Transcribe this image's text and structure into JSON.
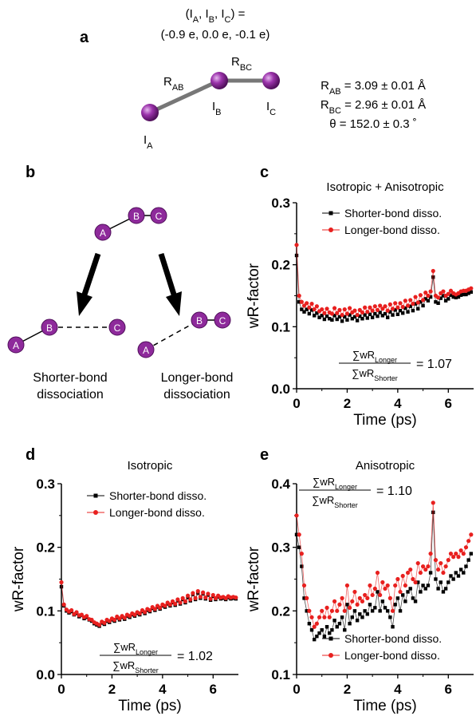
{
  "panel_a": {
    "label": "a",
    "charges_line1": "(I<sub>A</sub>, I<sub>B</sub>, I<sub>C</sub>) =",
    "charges_line2": "(-0.9 e, 0.0 e, -0.1 e)",
    "r_ab_label": "R<sub>AB</sub>",
    "r_bc_label": "R<sub>BC</sub>",
    "atom_a": "I<sub>A</sub>",
    "atom_b": "I<sub>B</sub>",
    "atom_c": "I<sub>C</sub>",
    "r_ab_value": "R<sub>AB</sub> = 3.09 ± 0.01 Å",
    "r_bc_value": "R<sub>BC</sub> = 2.96 ± 0.01 Å",
    "theta_value": "θ = 152.0 ± 0.3 ˚",
    "atom_color": "#8e2a9b"
  },
  "panel_b": {
    "label": "b",
    "atoms": [
      "A",
      "B",
      "C"
    ],
    "shorter_line1": "Shorter-bond",
    "shorter_line2": "dissociation",
    "longer_line1": "Longer-bond",
    "longer_line2": "dissociation"
  },
  "series_names": {
    "shorter": "Shorter-bond disso.",
    "longer": "Longer-bond disso."
  },
  "colors": {
    "shorter": "#000000",
    "longer": "#e8201f",
    "atom": "#8e2a9b"
  },
  "chart_data": [
    {
      "panel": "c",
      "type": "line",
      "title": "Isotropic + Anisotropic",
      "xlabel": "Time (ps)",
      "ylabel": "wR-factor",
      "xlim": [
        0,
        7
      ],
      "ylim": [
        0.0,
        0.3
      ],
      "xticks": [
        0,
        2,
        4,
        6
      ],
      "yticks": [
        0.0,
        0.1,
        0.2,
        0.3
      ],
      "ratio_num": "∑wR<sub>Longer</sub>",
      "ratio_den": "∑wR<sub>Shorter</sub>",
      "ratio_value": "= 1.07",
      "legend": "top-right",
      "x": [
        0.0,
        0.1,
        0.2,
        0.3,
        0.4,
        0.5,
        0.6,
        0.7,
        0.8,
        0.9,
        1.0,
        1.1,
        1.2,
        1.3,
        1.4,
        1.5,
        1.6,
        1.7,
        1.8,
        1.9,
        2.0,
        2.1,
        2.2,
        2.3,
        2.4,
        2.5,
        2.6,
        2.7,
        2.8,
        2.9,
        3.0,
        3.1,
        3.2,
        3.3,
        3.4,
        3.5,
        3.6,
        3.7,
        3.8,
        3.9,
        4.0,
        4.1,
        4.2,
        4.3,
        4.4,
        4.5,
        4.6,
        4.7,
        4.8,
        4.9,
        5.0,
        5.1,
        5.2,
        5.3,
        5.4,
        5.5,
        5.6,
        5.7,
        5.8,
        5.9,
        6.0,
        6.1,
        6.2,
        6.3,
        6.4,
        6.5,
        6.6,
        6.7,
        6.8,
        6.9
      ],
      "series": [
        {
          "key": "shorter",
          "values": [
            0.215,
            0.14,
            0.128,
            0.124,
            0.128,
            0.121,
            0.127,
            0.118,
            0.122,
            0.115,
            0.118,
            0.112,
            0.117,
            0.113,
            0.111,
            0.118,
            0.112,
            0.116,
            0.109,
            0.116,
            0.111,
            0.119,
            0.113,
            0.116,
            0.11,
            0.117,
            0.113,
            0.119,
            0.114,
            0.12,
            0.115,
            0.121,
            0.117,
            0.123,
            0.118,
            0.121,
            0.115,
            0.124,
            0.119,
            0.127,
            0.12,
            0.126,
            0.122,
            0.13,
            0.124,
            0.133,
            0.126,
            0.137,
            0.129,
            0.14,
            0.134,
            0.145,
            0.142,
            0.148,
            0.18,
            0.14,
            0.138,
            0.146,
            0.15,
            0.142,
            0.145,
            0.151,
            0.148,
            0.147,
            0.148,
            0.151,
            0.152,
            0.152,
            0.154,
            0.156
          ]
        },
        {
          "key": "longer",
          "values": [
            0.232,
            0.15,
            0.14,
            0.134,
            0.138,
            0.131,
            0.137,
            0.128,
            0.133,
            0.125,
            0.128,
            0.122,
            0.129,
            0.123,
            0.121,
            0.13,
            0.122,
            0.127,
            0.119,
            0.128,
            0.121,
            0.13,
            0.123,
            0.126,
            0.119,
            0.127,
            0.123,
            0.131,
            0.124,
            0.131,
            0.126,
            0.133,
            0.127,
            0.134,
            0.129,
            0.133,
            0.126,
            0.136,
            0.129,
            0.138,
            0.131,
            0.138,
            0.132,
            0.142,
            0.134,
            0.143,
            0.137,
            0.148,
            0.139,
            0.151,
            0.143,
            0.155,
            0.15,
            0.157,
            0.19,
            0.15,
            0.147,
            0.154,
            0.157,
            0.15,
            0.153,
            0.158,
            0.154,
            0.152,
            0.154,
            0.157,
            0.158,
            0.158,
            0.16,
            0.162
          ]
        }
      ]
    },
    {
      "panel": "d",
      "type": "line",
      "title": "Isotropic",
      "xlabel": "Time (ps)",
      "ylabel": "wR-factor",
      "xlim": [
        0,
        7
      ],
      "ylim": [
        0.0,
        0.3
      ],
      "xticks": [
        0,
        2,
        4,
        6
      ],
      "yticks": [
        0.0,
        0.1,
        0.2,
        0.3
      ],
      "ratio_num": "∑wR<sub>Longer</sub>",
      "ratio_den": "∑wR<sub>Shorter</sub>",
      "ratio_value": "= 1.02",
      "legend": "top-right",
      "x": [
        0.0,
        0.1,
        0.2,
        0.3,
        0.4,
        0.5,
        0.6,
        0.7,
        0.8,
        0.9,
        1.0,
        1.1,
        1.2,
        1.3,
        1.4,
        1.5,
        1.6,
        1.7,
        1.8,
        1.9,
        2.0,
        2.1,
        2.2,
        2.3,
        2.4,
        2.5,
        2.6,
        2.7,
        2.8,
        2.9,
        3.0,
        3.1,
        3.2,
        3.3,
        3.4,
        3.5,
        3.6,
        3.7,
        3.8,
        3.9,
        4.0,
        4.1,
        4.2,
        4.3,
        4.4,
        4.5,
        4.6,
        4.7,
        4.8,
        4.9,
        5.0,
        5.1,
        5.2,
        5.3,
        5.4,
        5.5,
        5.6,
        5.7,
        5.8,
        5.9,
        6.0,
        6.1,
        6.2,
        6.3,
        6.4,
        6.5,
        6.6,
        6.7,
        6.8,
        6.9
      ],
      "series": [
        {
          "key": "shorter",
          "values": [
            0.138,
            0.108,
            0.1,
            0.097,
            0.099,
            0.094,
            0.096,
            0.091,
            0.093,
            0.088,
            0.09,
            0.086,
            0.084,
            0.08,
            0.078,
            0.076,
            0.081,
            0.079,
            0.084,
            0.082,
            0.086,
            0.084,
            0.089,
            0.086,
            0.09,
            0.087,
            0.092,
            0.09,
            0.094,
            0.092,
            0.096,
            0.094,
            0.099,
            0.096,
            0.101,
            0.099,
            0.104,
            0.101,
            0.106,
            0.103,
            0.108,
            0.106,
            0.111,
            0.108,
            0.113,
            0.109,
            0.116,
            0.111,
            0.118,
            0.113,
            0.121,
            0.116,
            0.126,
            0.118,
            0.128,
            0.12,
            0.127,
            0.119,
            0.125,
            0.117,
            0.123,
            0.118,
            0.122,
            0.119,
            0.12,
            0.118,
            0.121,
            0.119,
            0.12,
            0.119
          ]
        },
        {
          "key": "longer",
          "values": [
            0.145,
            0.11,
            0.102,
            0.099,
            0.101,
            0.095,
            0.098,
            0.093,
            0.094,
            0.09,
            0.092,
            0.087,
            0.086,
            0.082,
            0.08,
            0.078,
            0.083,
            0.081,
            0.086,
            0.084,
            0.088,
            0.086,
            0.091,
            0.088,
            0.092,
            0.089,
            0.094,
            0.092,
            0.096,
            0.094,
            0.098,
            0.096,
            0.101,
            0.098,
            0.103,
            0.101,
            0.106,
            0.103,
            0.108,
            0.105,
            0.11,
            0.108,
            0.113,
            0.11,
            0.115,
            0.111,
            0.118,
            0.113,
            0.12,
            0.115,
            0.124,
            0.118,
            0.128,
            0.12,
            0.131,
            0.122,
            0.129,
            0.121,
            0.127,
            0.119,
            0.125,
            0.12,
            0.124,
            0.121,
            0.122,
            0.12,
            0.123,
            0.121,
            0.122,
            0.121
          ]
        }
      ]
    },
    {
      "panel": "e",
      "type": "line",
      "title": "Anisotropic",
      "xlabel": "Time (ps)",
      "ylabel": "wR-factor",
      "xlim": [
        0,
        7
      ],
      "ylim": [
        0.1,
        0.4
      ],
      "xticks": [
        0,
        2,
        4,
        6
      ],
      "yticks": [
        0.1,
        0.2,
        0.3,
        0.4
      ],
      "ratio_num": "∑wR<sub>Longer</sub>",
      "ratio_den": "∑wR<sub>Shorter</sub>",
      "ratio_value": "= 1.10",
      "legend": "bottom-right",
      "x": [
        0.0,
        0.1,
        0.2,
        0.3,
        0.4,
        0.5,
        0.6,
        0.7,
        0.8,
        0.9,
        1.0,
        1.1,
        1.2,
        1.3,
        1.4,
        1.5,
        1.6,
        1.7,
        1.8,
        1.9,
        2.0,
        2.1,
        2.2,
        2.3,
        2.4,
        2.5,
        2.6,
        2.7,
        2.8,
        2.9,
        3.0,
        3.1,
        3.2,
        3.3,
        3.4,
        3.5,
        3.6,
        3.7,
        3.8,
        3.9,
        4.0,
        4.1,
        4.2,
        4.3,
        4.4,
        4.5,
        4.6,
        4.7,
        4.8,
        4.9,
        5.0,
        5.1,
        5.2,
        5.3,
        5.4,
        5.5,
        5.6,
        5.7,
        5.8,
        5.9,
        6.0,
        6.1,
        6.2,
        6.3,
        6.4,
        6.5,
        6.6,
        6.7,
        6.8,
        6.9
      ],
      "series": [
        {
          "key": "shorter",
          "values": [
            0.32,
            0.3,
            0.27,
            0.22,
            0.2,
            0.18,
            0.17,
            0.155,
            0.16,
            0.165,
            0.17,
            0.16,
            0.175,
            0.165,
            0.17,
            0.185,
            0.175,
            0.18,
            0.19,
            0.17,
            0.21,
            0.18,
            0.19,
            0.2,
            0.185,
            0.195,
            0.19,
            0.2,
            0.195,
            0.21,
            0.2,
            0.205,
            0.23,
            0.2,
            0.215,
            0.205,
            0.2,
            0.19,
            0.175,
            0.21,
            0.22,
            0.2,
            0.225,
            0.215,
            0.23,
            0.235,
            0.22,
            0.215,
            0.245,
            0.23,
            0.24,
            0.235,
            0.24,
            0.26,
            0.355,
            0.25,
            0.235,
            0.245,
            0.23,
            0.235,
            0.245,
            0.255,
            0.25,
            0.26,
            0.255,
            0.265,
            0.26,
            0.27,
            0.28,
            0.29
          ]
        },
        {
          "key": "longer",
          "values": [
            0.35,
            0.32,
            0.29,
            0.24,
            0.22,
            0.2,
            0.19,
            0.175,
            0.18,
            0.19,
            0.2,
            0.19,
            0.205,
            0.19,
            0.2,
            0.215,
            0.2,
            0.21,
            0.22,
            0.2,
            0.24,
            0.205,
            0.215,
            0.23,
            0.21,
            0.22,
            0.215,
            0.225,
            0.22,
            0.24,
            0.225,
            0.235,
            0.26,
            0.225,
            0.245,
            0.235,
            0.24,
            0.22,
            0.2,
            0.24,
            0.25,
            0.23,
            0.255,
            0.24,
            0.26,
            0.265,
            0.25,
            0.245,
            0.275,
            0.26,
            0.27,
            0.265,
            0.27,
            0.29,
            0.37,
            0.28,
            0.265,
            0.275,
            0.26,
            0.27,
            0.28,
            0.29,
            0.285,
            0.29,
            0.285,
            0.295,
            0.29,
            0.3,
            0.31,
            0.32
          ]
        }
      ]
    }
  ]
}
